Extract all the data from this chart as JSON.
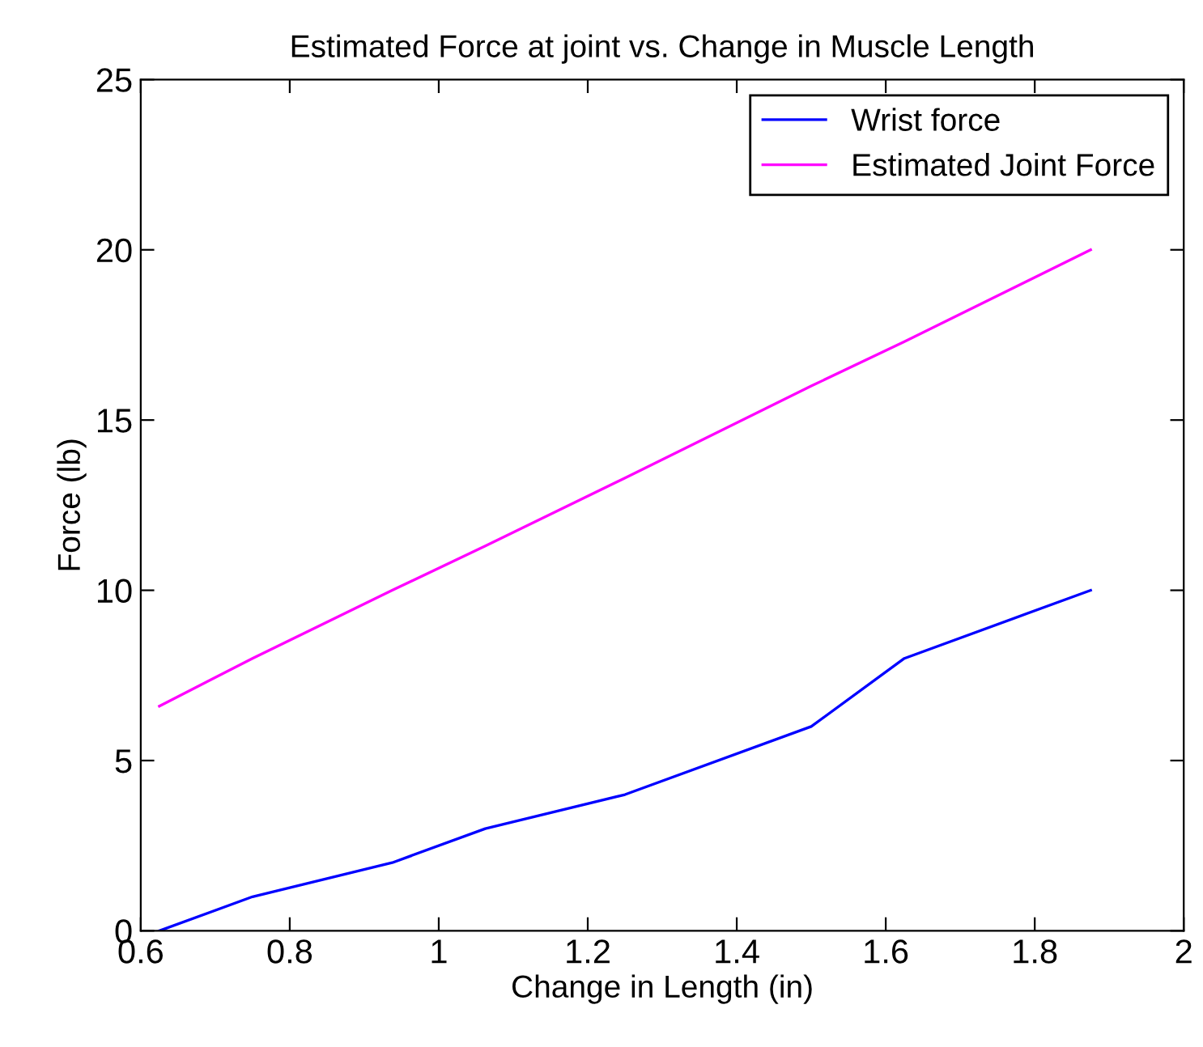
{
  "chart_data": {
    "type": "line",
    "title": "Estimated Force at joint vs. Change in Muscle Length",
    "xlabel": "Change in Length (in)",
    "ylabel": "Force (lb)",
    "x": [
      0.625,
      0.75,
      0.9375,
      1.0625,
      1.25,
      1.5,
      1.625,
      1.875
    ],
    "series": [
      {
        "name": "Wrist force",
        "color": "#0000ff",
        "values": [
          0,
          1,
          2,
          3,
          4,
          6,
          8,
          10
        ]
      },
      {
        "name": "Estimated Joint Force",
        "color": "#ff00ff",
        "values": [
          6.6,
          8.0,
          10.0,
          11.3,
          13.3,
          16.0,
          17.3,
          20.0
        ]
      }
    ],
    "xlim": [
      0.6,
      2
    ],
    "xticks": [
      0.6,
      0.8,
      1,
      1.2,
      1.4,
      1.6,
      1.8,
      2
    ],
    "ylim": [
      0,
      25
    ],
    "yticks": [
      0,
      5,
      10,
      15,
      20,
      25
    ],
    "grid": false,
    "legend": "top right"
  }
}
